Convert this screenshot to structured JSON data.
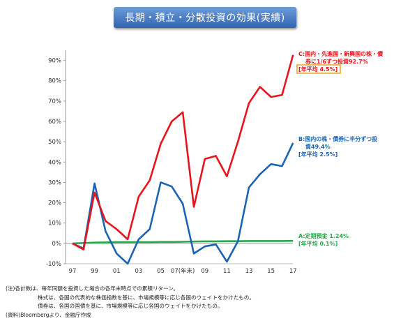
{
  "title": "長期・積立・分散投資の効果(実績)",
  "chart_data": {
    "type": "line",
    "x": [
      "97",
      "98",
      "99",
      "00",
      "01",
      "02",
      "03",
      "04",
      "05",
      "06",
      "07",
      "08",
      "09",
      "10",
      "11",
      "12",
      "13",
      "14",
      "15",
      "16",
      "17"
    ],
    "x_tick_labels": [
      "97",
      "99",
      "01",
      "03",
      "05",
      "07(年末)",
      "09",
      "11",
      "13",
      "15",
      "17"
    ],
    "ylim": [
      -10,
      95
    ],
    "y_ticks": [
      -10,
      0,
      10,
      20,
      30,
      40,
      50,
      60,
      70,
      80,
      90
    ],
    "y_tick_labels": [
      "-10%",
      "0%",
      "10%",
      "20%",
      "30%",
      "40%",
      "50%",
      "60%",
      "70%",
      "80%",
      "90%"
    ],
    "grid": false,
    "series": [
      {
        "name": "C",
        "color": "#e8141c",
        "values": [
          0,
          -3,
          25,
          11,
          7,
          2,
          23,
          31,
          49,
          60,
          64.5,
          18,
          41.5,
          43,
          33,
          50,
          69,
          77,
          72,
          73,
          92.7
        ],
        "label_lines": [
          "C:国内・先進国・新興国の株・債",
          "券に1/6ずつ投資92.7%"
        ],
        "avg_label": "[年平均 4.5%]"
      },
      {
        "name": "B",
        "color": "#1a63b5",
        "values": [
          0,
          -2.5,
          29.5,
          6,
          -5,
          -10,
          2,
          7,
          30,
          28,
          19.5,
          -5,
          -1.5,
          -0.5,
          -9,
          1,
          27.5,
          34,
          39,
          38,
          49.4
        ],
        "label_lines": [
          "B:国内の株・債券に半分ずつ投",
          "資49.4%"
        ],
        "avg_label": "[年平均 2.5%]"
      },
      {
        "name": "A",
        "color": "#2aa84a",
        "values": [
          0,
          0.2,
          0.4,
          0.5,
          0.6,
          0.6,
          0.6,
          0.6,
          0.7,
          0.7,
          0.8,
          0.9,
          1.0,
          1.0,
          1.1,
          1.1,
          1.2,
          1.2,
          1.2,
          1.2,
          1.24
        ],
        "label_lines": [
          "A:定期預金 1.24%"
        ],
        "avg_label": "[年平均 0.1%]"
      }
    ]
  },
  "notes": [
    "(注)各計数は、毎年同額を投資した場合の各年末時点での累積リターン。",
    "株式は、各国の代表的な株価指数を基に、市場規模等に応じ各国のウェイトをかけたもの。",
    "債券は、各国の国債を基に、市場規模等に応じ各国のウェイトをかけたもの。",
    "(資料)Bloombergより、金融庁作成"
  ]
}
